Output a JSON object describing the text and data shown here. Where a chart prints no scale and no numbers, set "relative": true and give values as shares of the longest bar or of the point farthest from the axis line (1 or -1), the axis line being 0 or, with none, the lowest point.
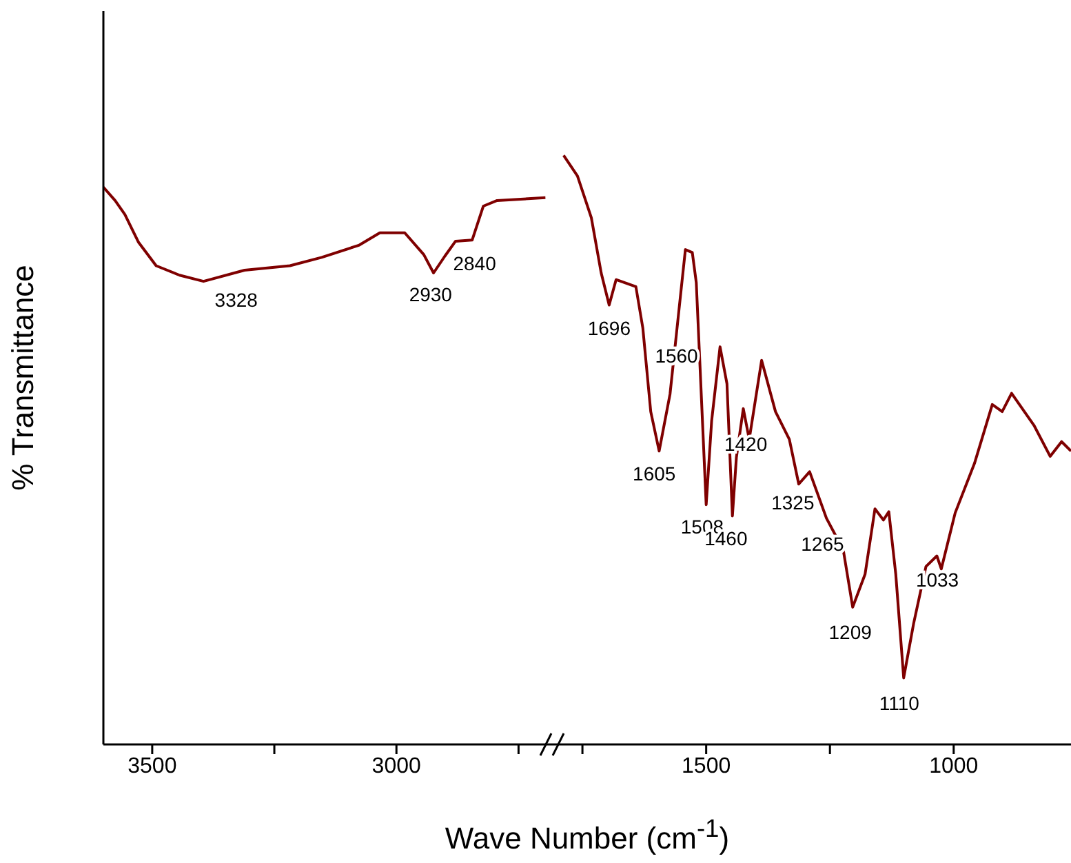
{
  "chart_data": [
    {
      "type": "line",
      "relative": true,
      "ylabel": "% Transmittance",
      "xlabel": "Wave Number (cm$^{-1}$)",
      "tick_labels": "x",
      "xlim": [
        3600,
        2680
      ],
      "xticks": [
        3500,
        {
          "value": 3250,
          "label": null
        },
        3000,
        {
          "value": 2750,
          "label": null
        }
      ],
      "x": [
        3600,
        3576,
        3556,
        3528,
        3492,
        3444,
        3395,
        3311,
        3218,
        3153,
        3076,
        3034,
        2983,
        2944,
        2924,
        2901,
        2879,
        2845,
        2822,
        2794,
        2695
      ],
      "series": [
        {
          "color": "#7f0000",
          "values": [
            1,
            0.976,
            0.951,
            0.901,
            0.859,
            0.842,
            0.831,
            0.851,
            0.859,
            0.874,
            0.896,
            0.918,
            0.918,
            0.879,
            0.846,
            0.876,
            0.903,
            0.905,
            0.966,
            0.976,
            0.981
          ]
        }
      ],
      "annotations": [
        {
          "text": "3328",
          "x": 3328,
          "y": 0.84
        },
        {
          "text": "2930",
          "x": 2930,
          "y": 0.85
        },
        {
          "text": "2840",
          "x": 2840,
          "y": 0.905
        }
      ]
    },
    {
      "type": "line",
      "relative": true,
      "tick_labels": "x",
      "xlim": [
        1810,
        763
      ],
      "xticks": [
        {
          "value": 1750,
          "label": null
        },
        1500,
        {
          "value": 1250,
          "label": null
        },
        1000
      ],
      "x": [
        1788,
        1760,
        1732,
        1712,
        1696,
        1682,
        1642,
        1628,
        1612,
        1595,
        1573,
        1550,
        1542,
        1528,
        1520,
        1500,
        1489,
        1472,
        1458,
        1447,
        1439,
        1425,
        1413,
        1388,
        1360,
        1332,
        1313,
        1291,
        1257,
        1223,
        1204,
        1179,
        1159,
        1142,
        1131,
        1117,
        1101,
        1081,
        1056,
        1034,
        1025,
        997,
        958,
        922,
        902,
        883,
        838,
        805,
        782,
        763
      ],
      "series": [
        {
          "color": "#7f0000",
          "values": [
            1,
            0.965,
            0.894,
            0.8,
            0.746,
            0.789,
            0.777,
            0.707,
            0.565,
            0.498,
            0.595,
            0.777,
            0.84,
            0.835,
            0.784,
            0.407,
            0.549,
            0.675,
            0.612,
            0.388,
            0.487,
            0.57,
            0.518,
            0.652,
            0.565,
            0.518,
            0.442,
            0.463,
            0.384,
            0.33,
            0.233,
            0.289,
            0.4,
            0.381,
            0.395,
            0.289,
            0.113,
            0.205,
            0.302,
            0.32,
            0.298,
            0.393,
            0.477,
            0.577,
            0.565,
            0.596,
            0.542,
            0.489,
            0.514,
            0.498
          ]
        }
      ],
      "annotations": [
        {
          "text": "1696",
          "x": 1696,
          "y": 0.746
        },
        {
          "text": "1560",
          "x": 1560,
          "y": 0.7
        },
        {
          "text": "1605",
          "x": 1605,
          "y": 0.5
        },
        {
          "text": "1508",
          "x": 1508,
          "y": 0.41
        },
        {
          "text": "1460",
          "x": 1460,
          "y": 0.39
        },
        {
          "text": "1420",
          "x": 1420,
          "y": 0.55
        },
        {
          "text": "1325",
          "x": 1325,
          "y": 0.45
        },
        {
          "text": "1265",
          "x": 1265,
          "y": 0.38
        },
        {
          "text": "1209",
          "x": 1209,
          "y": 0.23
        },
        {
          "text": "1110",
          "x": 1110,
          "y": 0.11
        },
        {
          "text": "1033",
          "x": 1033,
          "y": 0.32
        }
      ]
    }
  ]
}
